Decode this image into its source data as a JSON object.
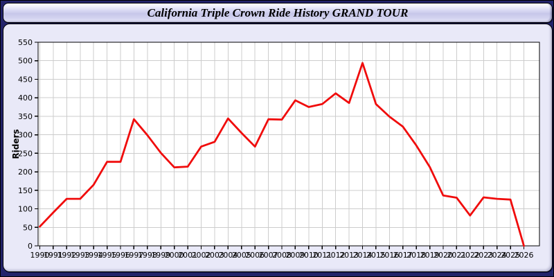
{
  "window": {
    "title": "California Triple Crown Ride History GRAND TOUR"
  },
  "colors": {
    "line": "#f00c0c",
    "plot_background": "#ffffff",
    "grid": "#cccccc",
    "axis": "#000000",
    "panel_background": "#e9e9f8",
    "frame_background": "#23236b",
    "label_text": "#000000"
  },
  "chart_data": {
    "type": "line",
    "title": "California Triple Crown Ride History GRAND TOUR",
    "xlabel": "",
    "ylabel": "Riders",
    "legend": "none",
    "grid": true,
    "ylim": [
      0,
      550
    ],
    "ytick_step": 50,
    "yticks": [
      0,
      50,
      100,
      150,
      200,
      250,
      300,
      350,
      400,
      450,
      500,
      550
    ],
    "categories": [
      1990,
      1991,
      1992,
      1993,
      1994,
      1995,
      1996,
      1997,
      1998,
      1999,
      2000,
      2001,
      2002,
      2003,
      2004,
      2005,
      2006,
      2007,
      2008,
      2009,
      2010,
      2011,
      2012,
      2013,
      2014,
      2015,
      2016,
      2017,
      2018,
      2019,
      2020,
      2021,
      2022,
      2023,
      2024,
      2025,
      2026
    ],
    "series": [
      {
        "name": "Riders",
        "color": "#f00c0c",
        "values": [
          52,
          90,
          127,
          127,
          165,
          227,
          227,
          342,
          299,
          251,
          212,
          214,
          268,
          281,
          344,
          305,
          268,
          342,
          341,
          393,
          375,
          383,
          412,
          386,
          494,
          383,
          349,
          322,
          271,
          213,
          136,
          130,
          82,
          131,
          127,
          125,
          0
        ]
      }
    ]
  }
}
